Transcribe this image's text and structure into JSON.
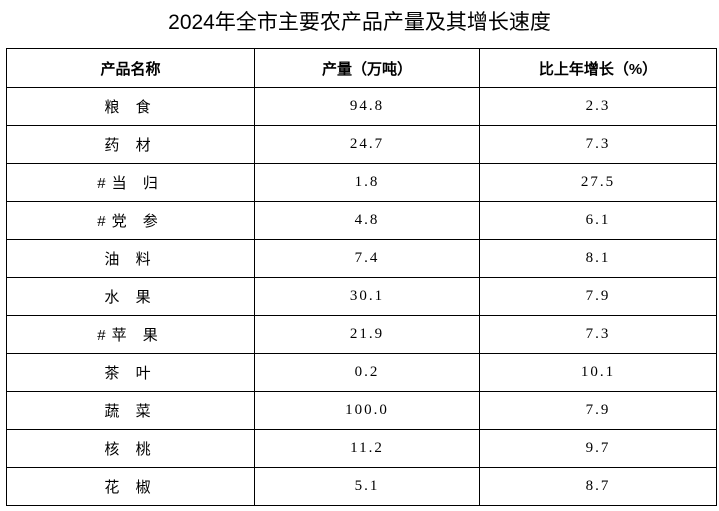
{
  "header": {
    "title": "2024年全市主要农产品产量及其增长速度"
  },
  "table": {
    "columns": [
      "产品名称",
      "产量（万吨）",
      "比上年增长（%）"
    ],
    "rows": [
      [
        "粮 食",
        "94.8",
        "2.3"
      ],
      [
        "药 材",
        "24.7",
        "7.3"
      ],
      [
        "#当 归",
        "1.8",
        "27.5"
      ],
      [
        "#党 参",
        "4.8",
        "6.1"
      ],
      [
        "油 料",
        "7.4",
        "8.1"
      ],
      [
        "水 果",
        "30.1",
        "7.9"
      ],
      [
        "#苹 果",
        "21.9",
        "7.3"
      ],
      [
        "茶 叶",
        "0.2",
        "10.1"
      ],
      [
        "蔬 菜",
        "100.0",
        "7.9"
      ],
      [
        "核 桃",
        "11.2",
        "9.7"
      ],
      [
        "花 椒",
        "5.1",
        "8.7"
      ]
    ]
  }
}
